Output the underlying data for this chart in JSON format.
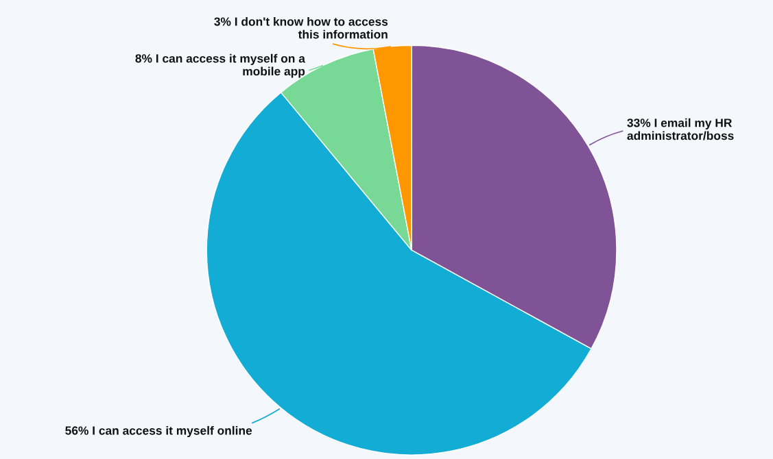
{
  "chart_data": {
    "type": "pie",
    "categories": [
      "I email my HR administrator/boss",
      "I can access it myself online",
      "I can access it myself on a mobile app",
      "I don't know how to access this information"
    ],
    "values": [
      33,
      56,
      8,
      3
    ],
    "value_labels": [
      "33%",
      "56%",
      "8%",
      "3%"
    ],
    "colors": [
      "#7f5396",
      "#12acd4",
      "#77d995",
      "#ff9800"
    ],
    "legend": false
  }
}
